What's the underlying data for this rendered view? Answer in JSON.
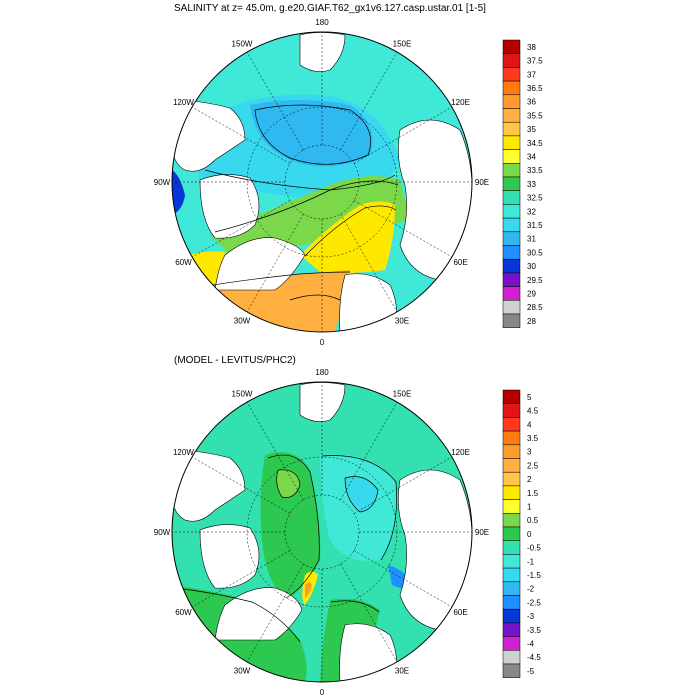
{
  "panels": [
    {
      "title": "SALINITY at z=  45.0m, g.e20.GIAF.T62_gx1v6.127.casp.ustar.01 [1-5]",
      "lon_labels": [
        "180",
        "150E",
        "120E",
        "90E",
        "60E",
        "30E",
        "0",
        "30W",
        "60W",
        "90W",
        "120W",
        "150W"
      ],
      "colorbar": {
        "labels": [
          "38",
          "37.5",
          "37",
          "36.5",
          "36",
          "35.5",
          "35",
          "34.5",
          "34",
          "33.5",
          "33",
          "32.5",
          "32",
          "31.5",
          "31",
          "30.5",
          "30",
          "29.5",
          "29",
          "28.5",
          "28"
        ],
        "colors": [
          "#b30000",
          "#e01515",
          "#ff3a1c",
          "#ff7a10",
          "#ff9a30",
          "#ffb040",
          "#ffc840",
          "#ffe800",
          "#ffff30",
          "#7ad84a",
          "#2dc850",
          "#33e0b0",
          "#40e8d8",
          "#38d8ee",
          "#30b8f0",
          "#1e90ff",
          "#0a36d8",
          "#7a10c8",
          "#d020d0",
          "#d0d0d0",
          "#888888"
        ]
      }
    },
    {
      "title": "(MODEL - LEVITUS/PHC2)",
      "lon_labels": [
        "180",
        "150E",
        "120E",
        "90E",
        "60E",
        "30E",
        "0",
        "30W",
        "60W",
        "90W",
        "120W",
        "150W"
      ],
      "colorbar": {
        "labels": [
          "5",
          "4.5",
          "4",
          "3.5",
          "3",
          "2.5",
          "2",
          "1.5",
          "1",
          "0.5",
          "0",
          "-0.5",
          "-1",
          "-1.5",
          "-2",
          "-2.5",
          "-3",
          "-3.5",
          "-4",
          "-4.5",
          "-5"
        ],
        "colors": [
          "#b30000",
          "#e01515",
          "#ff3a1c",
          "#ff7a10",
          "#ff9a30",
          "#ffb040",
          "#ffc840",
          "#ffe800",
          "#ffff30",
          "#7ad84a",
          "#2dc850",
          "#33e0b0",
          "#40e8d8",
          "#38d8ee",
          "#30b8f0",
          "#1e90ff",
          "#0a36d8",
          "#7a10c8",
          "#d020d0",
          "#d0d0d0",
          "#888888"
        ]
      }
    }
  ]
}
